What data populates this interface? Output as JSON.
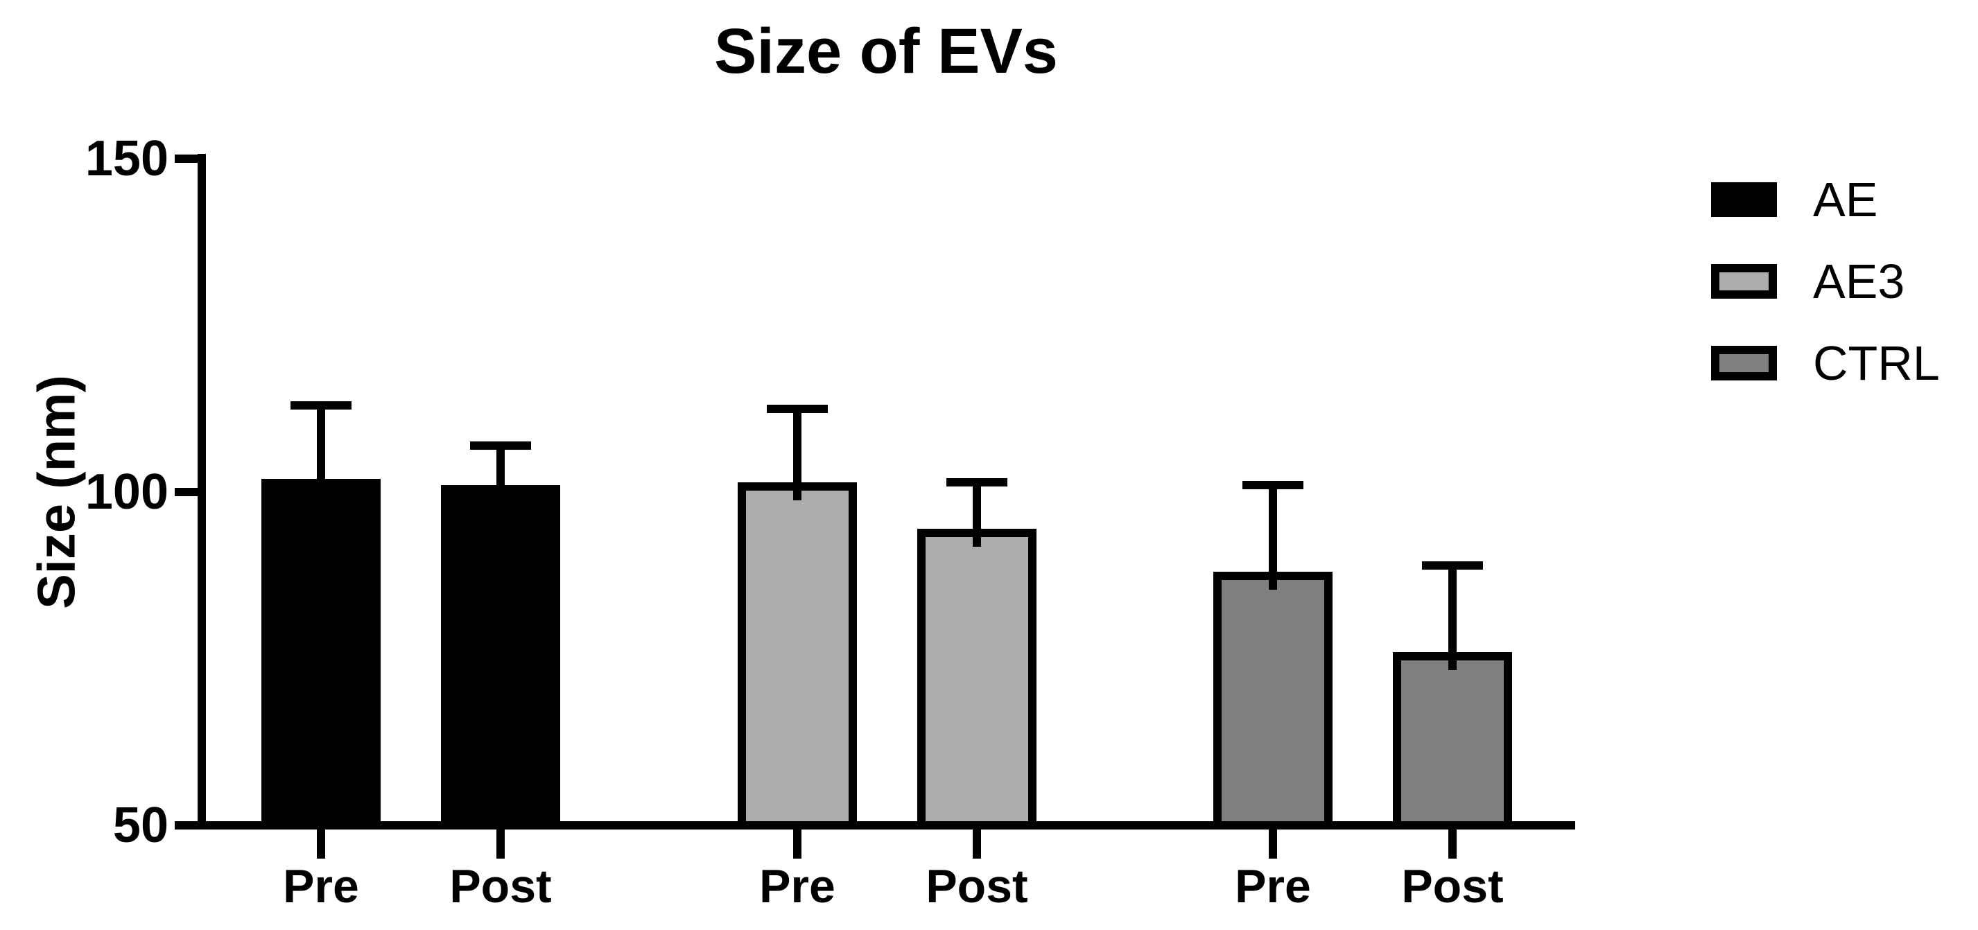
{
  "chart_data": {
    "type": "bar",
    "title": "Size of EVs",
    "ylabel": "Size (nm)",
    "xlabel": "",
    "ylim": [
      50,
      150
    ],
    "yticks": [
      50,
      100,
      150
    ],
    "bar_categories": [
      "Pre",
      "Post"
    ],
    "series": [
      {
        "name": "AE",
        "color": "#000000",
        "values": [
          102,
          101
        ],
        "errors": [
          11,
          6
        ]
      },
      {
        "name": "AE3",
        "color": "#ADADAD",
        "values": [
          101.5,
          94.5
        ],
        "errors": [
          11,
          7
        ]
      },
      {
        "name": "CTRL",
        "color": "#808080",
        "values": [
          88,
          76
        ],
        "errors": [
          13,
          13
        ]
      }
    ],
    "error_direction": "up",
    "legend_position": "right",
    "grid": false,
    "axis_color": "#000000",
    "background_color": "#ffffff"
  }
}
